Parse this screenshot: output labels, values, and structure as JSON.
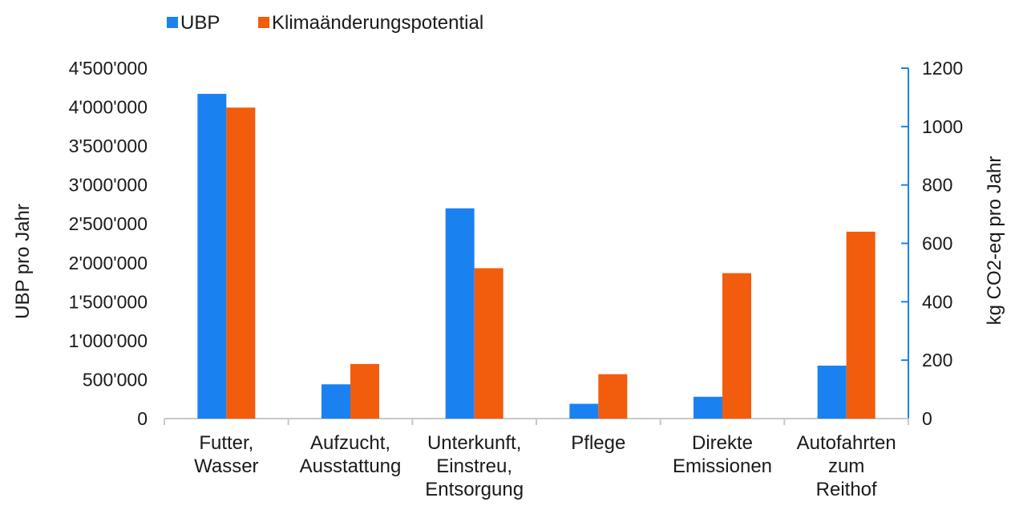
{
  "chart_data": {
    "type": "bar",
    "categories": [
      [
        "Futter,",
        "Wasser"
      ],
      [
        "Aufzucht,",
        "Ausstattung"
      ],
      [
        "Unterkunft,",
        "Einstreu,",
        "Entsorgung"
      ],
      [
        "Pflege"
      ],
      [
        "Direkte",
        "Emissionen"
      ],
      [
        "Autofahrten",
        "zum",
        "Reithof"
      ]
    ],
    "series": [
      {
        "name": "UBP",
        "axis": "left",
        "color": "#1a82f0",
        "values": [
          4170000,
          440000,
          2700000,
          190000,
          280000,
          680000
        ]
      },
      {
        "name": "Klimaänderungspotential",
        "axis": "right",
        "color": "#f25c0d",
        "values": [
          1065,
          187,
          515,
          152,
          498,
          640
        ]
      }
    ],
    "ylabel": "UBP pro Jahr",
    "ylabel_right": "kg CO2-eq pro Jahr",
    "ylim": [
      0,
      4500000
    ],
    "ylim_right": [
      0,
      1200
    ],
    "yticks": [
      "0",
      "500'000",
      "1'000'000",
      "1'500'000",
      "2'000'000",
      "2'500'000",
      "3'000'000",
      "3'500'000",
      "4'000'000",
      "4'500'000"
    ],
    "yticks_right": [
      "0",
      "200",
      "400",
      "600",
      "800",
      "1000",
      "1200"
    ],
    "legend_position": "top-left",
    "grid": false,
    "right_axis_color": "#1a82f0"
  }
}
